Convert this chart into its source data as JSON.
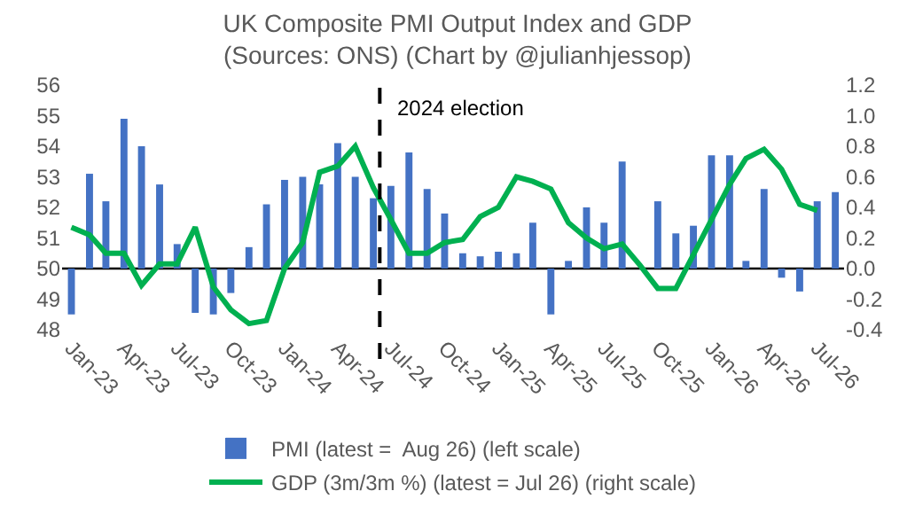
{
  "chart_data": {
    "type": "bar",
    "title": "UK Composite PMI Output Index and GDP",
    "subtitle": "(Sources: ONS) (Chart by @julianhjessop)",
    "x": [
      "2023-01",
      "2023-02",
      "2023-03",
      "2023-04",
      "2023-05",
      "2023-06",
      "2023-07",
      "2023-08",
      "2023-09",
      "2023-10",
      "2023-11",
      "2023-12",
      "2024-01",
      "2024-02",
      "2024-03",
      "2024-04",
      "2024-05",
      "2024-06",
      "2024-07",
      "2024-08",
      "2024-09",
      "2024-10",
      "2024-11",
      "2024-12",
      "2025-01",
      "2025-02",
      "2025-03",
      "2025-04",
      "2025-05",
      "2025-06",
      "2025-07",
      "2025-08",
      "2025-09",
      "2025-10",
      "2025-11",
      "2025-12",
      "2026-01",
      "2026-02",
      "2026-03",
      "2026-04",
      "2026-05",
      "2026-06",
      "2026-07",
      "2026-08"
    ],
    "xlim": [
      "2022-12-16",
      "2026-08-16"
    ],
    "xticks": [
      {
        "value": "2023-01",
        "label": "Jan-23"
      },
      {
        "value": "2023-04",
        "label": "Apr-23"
      },
      {
        "value": "2023-07",
        "label": "Jul-23"
      },
      {
        "value": "2023-10",
        "label": "Oct-23"
      },
      {
        "value": "2024-01",
        "label": "Jan-24"
      },
      {
        "value": "2024-04",
        "label": "Apr-24"
      },
      {
        "value": "2024-07",
        "label": "Jul-24"
      },
      {
        "value": "2024-10",
        "label": "Oct-24"
      },
      {
        "value": "2025-01",
        "label": "Jan-25"
      },
      {
        "value": "2025-04",
        "label": "Apr-25"
      },
      {
        "value": "2025-07",
        "label": "Jul-25"
      },
      {
        "value": "2025-10",
        "label": "Oct-25"
      },
      {
        "value": "2026-01",
        "label": "Jan-26"
      },
      {
        "value": "2026-04",
        "label": "Apr-26"
      },
      {
        "value": "2026-07",
        "label": "Jul-26"
      }
    ],
    "ylim": [
      48,
      56
    ],
    "yticks": [
      48,
      49,
      50,
      51,
      52,
      53,
      54,
      55,
      56
    ],
    "y2lim": [
      -0.4,
      1.2
    ],
    "y2ticks": [
      {
        "value": -0.4,
        "label": "-0.4"
      },
      {
        "value": -0.2,
        "label": "-0.2"
      },
      {
        "value": 0,
        "label": "0.0"
      },
      {
        "value": 0.2,
        "label": "0.2"
      },
      {
        "value": 0.4,
        "label": "0.4"
      },
      {
        "value": 0.6,
        "label": "0.6"
      },
      {
        "value": 0.8,
        "label": "0.8"
      },
      {
        "value": 1.0,
        "label": "1.0"
      },
      {
        "value": 1.2,
        "label": "1.2"
      }
    ],
    "series": [
      {
        "name": "PMI (latest =  Aug 26) (left scale)",
        "color": "#4472c4",
        "base": [
          50,
          50,
          50,
          50,
          50,
          50,
          50,
          50,
          50,
          50,
          50,
          50,
          50,
          50,
          50,
          50,
          50,
          50,
          50,
          50,
          50,
          50,
          50,
          50,
          50,
          50,
          50,
          50,
          50,
          50,
          50,
          50,
          null,
          50,
          50,
          50,
          50,
          50,
          50,
          50,
          50,
          50,
          50,
          50
        ],
        "values": [
          -1.5,
          3.1,
          2.2,
          4.9,
          4.0,
          2.75,
          0.8,
          -1.45,
          -1.5,
          -0.8,
          0.7,
          2.1,
          2.9,
          3.0,
          2.75,
          4.1,
          3.0,
          2.3,
          2.7,
          3.8,
          2.6,
          1.8,
          0.5,
          0.4,
          0.55,
          0.5,
          1.5,
          -1.5,
          0.25,
          2.0,
          1.5,
          3.5,
          null,
          2.2,
          1.15,
          1.4,
          3.7,
          3.7,
          0.25,
          2.6,
          -0.3,
          -0.75,
          2.2,
          2.5
        ]
      },
      {
        "name": "GDP (3m/3m %) (latest = Jul 26) (right scale)",
        "type": "line",
        "axis": "y2",
        "color": "#00b050",
        "values": [
          0.27,
          0.22,
          0.1,
          0.1,
          -0.11,
          0.03,
          0.03,
          0.27,
          -0.12,
          -0.27,
          -0.36,
          -0.34,
          0.0,
          0.17,
          0.63,
          0.67,
          0.8,
          0.53,
          0.32,
          0.1,
          0.1,
          0.17,
          0.19,
          0.34,
          0.4,
          0.6,
          0.57,
          0.52,
          0.3,
          0.2,
          0.13,
          0.16,
          0.02,
          -0.13,
          -0.13,
          0.09,
          0.32,
          0.55,
          0.72,
          0.78,
          0.65,
          0.42,
          0.38,
          null
        ]
      }
    ],
    "ref_lines": [
      {
        "axis": "x",
        "value": "2024-06-12",
        "label": "2024 election",
        "color": "#000000",
        "line_style": "dashed"
      },
      {
        "axis": "y",
        "value": 50,
        "color": "#000000",
        "line_style": "solid"
      }
    ],
    "grid": false,
    "legend": "bottom",
    "marker": "none"
  }
}
